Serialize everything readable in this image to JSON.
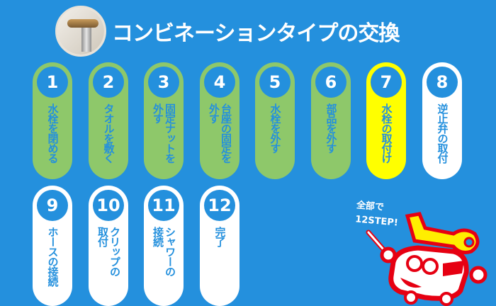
{
  "header": {
    "title": "コンビネーションタイプの交換",
    "image": "faucet-photo"
  },
  "colors": {
    "background": "#2490dd",
    "done": "#8ec86a",
    "current": "#ffff00",
    "todo": "#ffffff"
  },
  "steps": [
    {
      "num": "1",
      "label": "水栓を閉める",
      "state": "done"
    },
    {
      "num": "2",
      "label": "タオルを敷く",
      "state": "done"
    },
    {
      "num": "3",
      "label": "固定ナットを\n外す",
      "state": "done"
    },
    {
      "num": "4",
      "label": "台座の固定を\n外す",
      "state": "done"
    },
    {
      "num": "5",
      "label": "水栓を外す",
      "state": "done"
    },
    {
      "num": "6",
      "label": "部品を外す",
      "state": "done"
    },
    {
      "num": "7",
      "label": "水栓の取付け",
      "state": "current"
    },
    {
      "num": "8",
      "label": "逆止弁の取付",
      "state": "todo"
    },
    {
      "num": "9",
      "label": "ホースの接続",
      "state": "todo"
    },
    {
      "num": "10",
      "label": "クリップの\n取付",
      "state": "todo"
    },
    {
      "num": "11",
      "label": "シャワーの\n接続",
      "state": "todo"
    },
    {
      "num": "12",
      "label": "完了",
      "state": "todo"
    }
  ],
  "mascot": {
    "note": "全部で\n12STEP!"
  }
}
